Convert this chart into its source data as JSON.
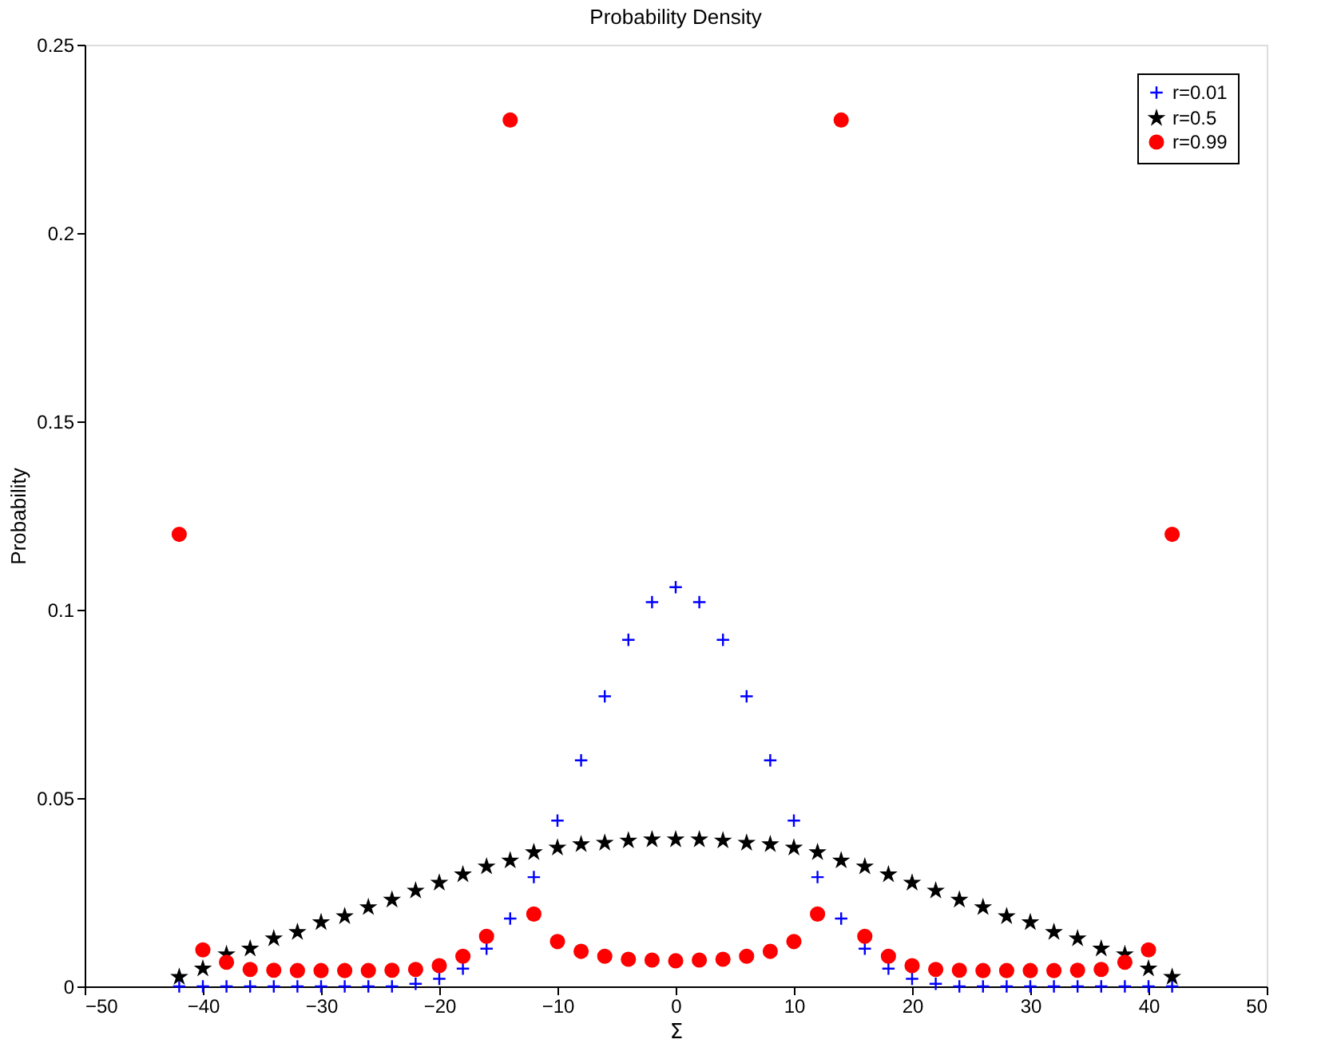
{
  "chart_data": {
    "type": "scatter",
    "title": "Probability Density",
    "xlabel": "Σ",
    "ylabel": "Probability",
    "x": [
      -42,
      -40,
      -38,
      -36,
      -34,
      -32,
      -30,
      -28,
      -26,
      -24,
      -22,
      -20,
      -18,
      -16,
      -14,
      -12,
      -10,
      -8,
      -6,
      -4,
      -2,
      0,
      2,
      4,
      6,
      8,
      10,
      12,
      14,
      16,
      18,
      20,
      22,
      24,
      26,
      28,
      30,
      32,
      34,
      36,
      38,
      40,
      42
    ],
    "series": [
      {
        "name": "r=0.01",
        "color": "#0000ff",
        "marker": "cross",
        "values": [
          0,
          0,
          0,
          0,
          0,
          0,
          0,
          0,
          0,
          0,
          0.0007,
          0.002,
          0.0047,
          0.01,
          0.018,
          0.029,
          0.044,
          0.06,
          0.077,
          0.092,
          0.102,
          0.106,
          0.102,
          0.092,
          0.077,
          0.06,
          0.044,
          0.029,
          0.018,
          0.01,
          0.0047,
          0.002,
          0.0007,
          0,
          0,
          0,
          0,
          0,
          0,
          0,
          0,
          0,
          0
        ]
      },
      {
        "name": "r=0.5",
        "color": "#000000",
        "marker": "star",
        "values": [
          0.0025,
          0.0047,
          0.0085,
          0.01,
          0.0127,
          0.0144,
          0.017,
          0.0186,
          0.021,
          0.023,
          0.0254,
          0.0275,
          0.0297,
          0.0318,
          0.0334,
          0.0356,
          0.0368,
          0.0377,
          0.0381,
          0.0387,
          0.039,
          0.039,
          0.039,
          0.0387,
          0.0381,
          0.0377,
          0.0368,
          0.0356,
          0.0334,
          0.0318,
          0.0297,
          0.0275,
          0.0254,
          0.023,
          0.021,
          0.0186,
          0.017,
          0.0144,
          0.0127,
          0.01,
          0.0085,
          0.0047,
          0.0025
        ]
      },
      {
        "name": "r=0.99",
        "color": "#ff0000",
        "marker": "circle",
        "values": [
          0.12,
          0.0097,
          0.0064,
          0.0045,
          0.0043,
          0.0042,
          0.0042,
          0.0042,
          0.0042,
          0.0043,
          0.0045,
          0.0055,
          0.008,
          0.0133,
          0.23,
          0.0192,
          0.0119,
          0.0093,
          0.008,
          0.0072,
          0.007,
          0.0068,
          0.007,
          0.0072,
          0.008,
          0.0093,
          0.0119,
          0.0192,
          0.23,
          0.0133,
          0.008,
          0.0055,
          0.0045,
          0.0043,
          0.0042,
          0.0042,
          0.0042,
          0.0042,
          0.0043,
          0.0045,
          0.0064,
          0.0097,
          0.12
        ]
      }
    ],
    "xlim": [
      -50,
      50
    ],
    "xticks": [
      -50,
      -40,
      -30,
      -20,
      -10,
      0,
      10,
      20,
      30,
      40,
      50
    ],
    "ylim": [
      0,
      0.25
    ],
    "yticks": [
      0,
      0.05,
      0.1,
      0.15,
      0.2,
      0.25
    ],
    "grid": false,
    "legend": "top right"
  }
}
